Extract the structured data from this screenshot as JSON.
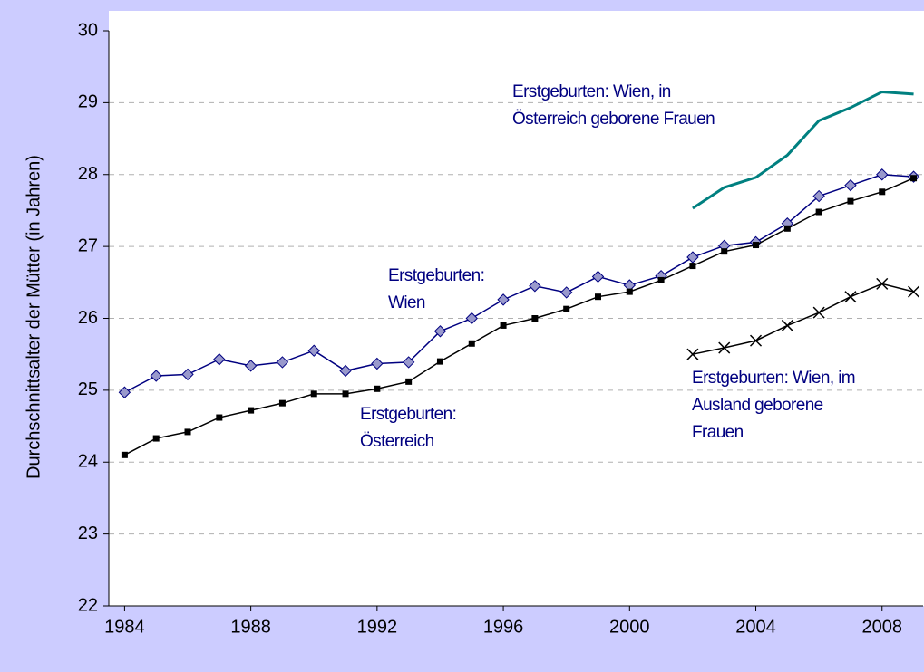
{
  "chart_data": {
    "type": "line",
    "y_label": "Durchschnittsalter der Mütter (in Jahren)",
    "x": [
      1984,
      1985,
      1986,
      1987,
      1988,
      1989,
      1990,
      1991,
      1992,
      1993,
      1994,
      1995,
      1996,
      1997,
      1998,
      1999,
      2000,
      2001,
      2002,
      2003,
      2004,
      2005,
      2006,
      2007,
      2008,
      2009
    ],
    "series": [
      {
        "color": "#000080",
        "marker": "diamond",
        "values": [
          24.97,
          25.2,
          25.22,
          25.43,
          25.34,
          25.39,
          25.55,
          25.27,
          25.37,
          25.39,
          25.82,
          26.0,
          26.26,
          26.45,
          26.36,
          26.58,
          26.46,
          26.59,
          26.85,
          27.01,
          27.06,
          27.32,
          27.7,
          27.85,
          28.0,
          27.97
        ]
      },
      {
        "color": "#000000",
        "marker": "square",
        "values": [
          24.1,
          24.33,
          24.42,
          24.62,
          24.72,
          24.82,
          24.95,
          24.95,
          25.02,
          25.12,
          25.4,
          25.65,
          25.9,
          26.0,
          26.13,
          26.3,
          26.37,
          26.53,
          26.73,
          26.93,
          27.02,
          27.25,
          27.48,
          27.63,
          27.76,
          27.95
        ]
      },
      {
        "color": "#008080",
        "marker": "none",
        "values": [
          null,
          null,
          null,
          null,
          null,
          null,
          null,
          null,
          null,
          null,
          null,
          null,
          null,
          null,
          null,
          null,
          null,
          null,
          27.53,
          27.82,
          27.96,
          28.27,
          28.75,
          28.93,
          29.15,
          29.12
        ]
      },
      {
        "color": "#000000",
        "marker": "x",
        "values": [
          null,
          null,
          null,
          null,
          null,
          null,
          null,
          null,
          null,
          null,
          null,
          null,
          null,
          null,
          null,
          null,
          null,
          null,
          25.5,
          25.59,
          25.69,
          25.9,
          26.08,
          26.3,
          26.48,
          26.37
        ]
      }
    ],
    "annotations": [
      [
        "Erstgeburten: Wien, in",
        "Österreich geborene Frauen"
      ],
      [
        "Erstgeburten:",
        "Wien"
      ],
      [
        "Erstgeburten:",
        "Österreich"
      ],
      [
        "Erstgeburten: Wien, im",
        "Ausland geborene",
        "Frauen"
      ]
    ],
    "xlim": [
      1983.5,
      2009.3
    ],
    "xticks": [
      1984,
      1988,
      1992,
      1996,
      2000,
      2004,
      2008
    ],
    "ylim": [
      22,
      30
    ],
    "yticks": [
      22,
      23,
      24,
      25,
      26,
      27,
      28,
      29,
      30
    ],
    "grid": true
  }
}
